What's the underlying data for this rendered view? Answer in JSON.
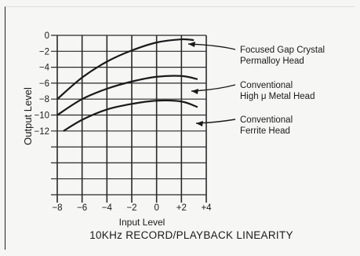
{
  "chart_data": {
    "type": "line",
    "title": "10KHz RECORD/PLAYBACK LINEARITY",
    "xlabel": "Input Level",
    "ylabel": "Output Level",
    "xlim": [
      -8,
      4
    ],
    "ylim": [
      -20,
      0
    ],
    "x_ticks": [
      "−8",
      "−6",
      "−4",
      "−2",
      "0",
      "+2",
      "+4"
    ],
    "x_tick_values": [
      -8,
      -6,
      -4,
      -2,
      0,
      2,
      4
    ],
    "y_ticks": [
      "0",
      "−2",
      "−4",
      "−6",
      "−8",
      "−10",
      "−12"
    ],
    "y_tick_values": [
      0,
      -2,
      -4,
      -6,
      -8,
      -10,
      -12
    ],
    "grid": true,
    "series": [
      {
        "name": "Focused Gap Crystal Permalloy Head",
        "label_lines": [
          "Focused Gap Crystal",
          "Permalloy Head"
        ],
        "x": [
          -8,
          -6,
          -4,
          -2,
          0,
          2,
          3
        ],
        "y": [
          -8,
          -5.3,
          -3.3,
          -1.9,
          -0.9,
          -0.5,
          -0.6
        ]
      },
      {
        "name": "Conventional High μ Metal Head",
        "label_lines": [
          "Conventional",
          "High μ Metal Head"
        ],
        "x": [
          -8,
          -6,
          -4,
          -2,
          0,
          2,
          3.3
        ],
        "y": [
          -10,
          -8,
          -6.7,
          -5.8,
          -5.2,
          -5.1,
          -5.5
        ]
      },
      {
        "name": "Conventional Ferrite Head",
        "label_lines": [
          "Conventional",
          "Ferrite Head"
        ],
        "x": [
          -7.5,
          -6,
          -4,
          -2,
          0,
          2,
          3.3
        ],
        "y": [
          -12,
          -10.6,
          -9.3,
          -8.6,
          -8.2,
          -8.3,
          -9
        ]
      }
    ]
  }
}
